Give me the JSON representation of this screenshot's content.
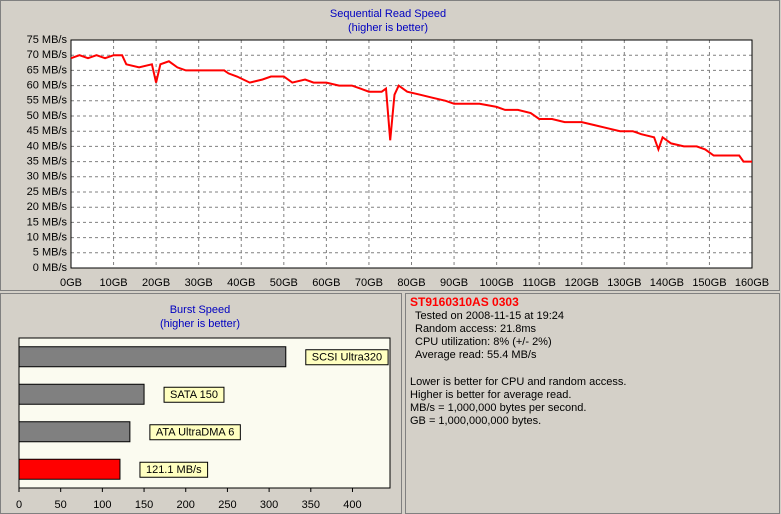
{
  "chart_data": [
    {
      "type": "line",
      "title": "Sequential Read Speed",
      "subtitle": "(higher is better)",
      "x": [
        0,
        2,
        4,
        6,
        8,
        10,
        12,
        13,
        16,
        19,
        20,
        21,
        23,
        25,
        27,
        30,
        33,
        36,
        37,
        39,
        42,
        45,
        47,
        50,
        52,
        55,
        57,
        60,
        63,
        66,
        68,
        70,
        73,
        74,
        75,
        76,
        77,
        79,
        82,
        85,
        88,
        90,
        93,
        96,
        100,
        102,
        105,
        108,
        110,
        113,
        116,
        118,
        120,
        123,
        126,
        129,
        132,
        134,
        137,
        138,
        139,
        141,
        144,
        147,
        149,
        151,
        154,
        157,
        158,
        160
      ],
      "values": [
        69,
        70,
        69,
        70,
        69,
        70,
        70,
        67,
        66,
        67,
        61,
        67,
        68,
        66,
        65,
        65,
        65,
        65,
        64,
        63,
        61,
        62,
        63,
        63,
        61,
        62,
        61,
        61,
        60,
        60,
        59,
        58,
        58,
        59,
        42,
        57,
        60,
        58,
        57,
        56,
        55,
        54,
        54,
        54,
        53,
        52,
        52,
        51,
        49,
        49,
        48,
        48,
        48,
        47,
        46,
        45,
        45,
        44,
        43,
        39,
        43,
        41,
        40,
        40,
        39,
        37,
        37,
        37,
        35,
        35
      ],
      "color": "#ff0000",
      "grid": true,
      "xlim": [
        0,
        160
      ],
      "xticks": [
        {
          "value": 0,
          "label": "0GB"
        },
        {
          "value": 10,
          "label": "10GB"
        },
        {
          "value": 20,
          "label": "20GB"
        },
        {
          "value": 30,
          "label": "30GB"
        },
        {
          "value": 40,
          "label": "40GB"
        },
        {
          "value": 50,
          "label": "50GB"
        },
        {
          "value": 60,
          "label": "60GB"
        },
        {
          "value": 70,
          "label": "70GB"
        },
        {
          "value": 80,
          "label": "80GB"
        },
        {
          "value": 90,
          "label": "90GB"
        },
        {
          "value": 100,
          "label": "100GB"
        },
        {
          "value": 110,
          "label": "110GB"
        },
        {
          "value": 120,
          "label": "120GB"
        },
        {
          "value": 130,
          "label": "130GB"
        },
        {
          "value": 140,
          "label": "140GB"
        },
        {
          "value": 150,
          "label": "150GB"
        },
        {
          "value": 160,
          "label": "160GB"
        }
      ],
      "ylim": [
        0,
        75
      ],
      "yticks": [
        {
          "value": 0,
          "label": "0 MB/s"
        },
        {
          "value": 5,
          "label": "5 MB/s"
        },
        {
          "value": 10,
          "label": "10 MB/s"
        },
        {
          "value": 15,
          "label": "15 MB/s"
        },
        {
          "value": 20,
          "label": "20 MB/s"
        },
        {
          "value": 25,
          "label": "25 MB/s"
        },
        {
          "value": 30,
          "label": "30 MB/s"
        },
        {
          "value": 35,
          "label": "35 MB/s"
        },
        {
          "value": 40,
          "label": "40 MB/s"
        },
        {
          "value": 45,
          "label": "45 MB/s"
        },
        {
          "value": 50,
          "label": "50 MB/s"
        },
        {
          "value": 55,
          "label": "55 MB/s"
        },
        {
          "value": 60,
          "label": "60 MB/s"
        },
        {
          "value": 65,
          "label": "65 MB/s"
        },
        {
          "value": 70,
          "label": "70 MB/s"
        },
        {
          "value": 75,
          "label": "75 MB/s"
        }
      ]
    },
    {
      "type": "hbar",
      "title": "Burst Speed",
      "subtitle": "(higher is better)",
      "categories": [
        "SCSI Ultra320",
        "SATA 150",
        "ATA UltraDMA 6",
        null
      ],
      "values": [
        320,
        150,
        133,
        121.1
      ],
      "value_labels": [
        null,
        null,
        null,
        "121.1 MB/s"
      ],
      "colors": [
        "#808080",
        "#808080",
        "#808080",
        "#ff0000"
      ],
      "xlim": [
        0,
        445
      ],
      "xticks": [
        0,
        50,
        100,
        150,
        200,
        250,
        300,
        350,
        400
      ]
    }
  ],
  "info": {
    "title": "ST9160310AS 0303",
    "lines": [
      "Tested on 2008-11-15 at 19:24",
      "Random access: 21.8ms",
      "CPU utilization: 8% (+/- 2%)",
      "Average read: 55.4 MB/s"
    ],
    "notes": [
      "Lower is better for CPU and random access.",
      "Higher is better for average read.",
      "MB/s = 1,000,000 bytes per second.",
      "GB = 1,000,000,000 bytes."
    ]
  }
}
